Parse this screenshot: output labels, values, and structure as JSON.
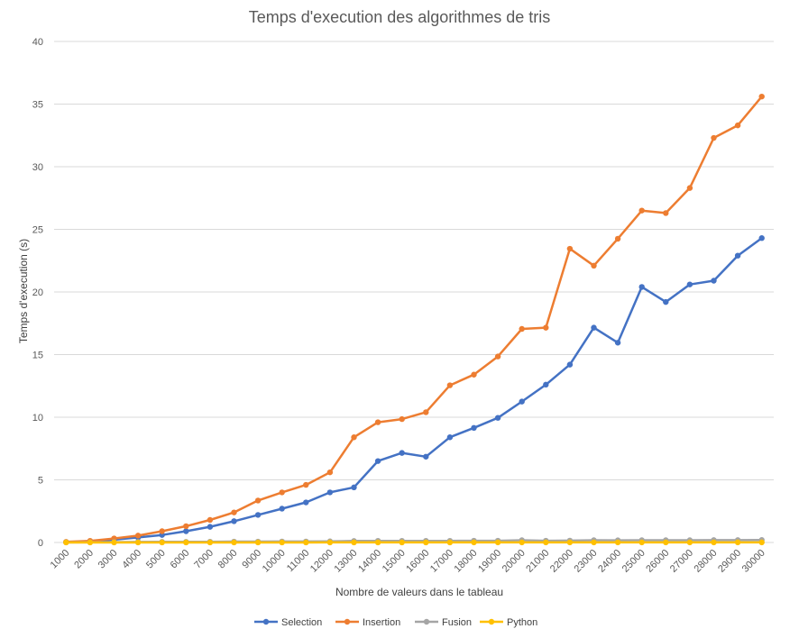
{
  "chart_data": {
    "type": "line",
    "title": "Temps d'execution des algorithmes de tris",
    "xlabel": "Nombre de valeurs dans le tableau",
    "ylabel": "Temps d'execution (s)",
    "ylim": [
      0,
      40
    ],
    "yticks": [
      "0",
      "5",
      "10",
      "15",
      "20",
      "25",
      "30",
      "35",
      "40"
    ],
    "grid": true,
    "legend_position": "bottom",
    "categories": [
      "1000",
      "2000",
      "3000",
      "4000",
      "5000",
      "6000",
      "7000",
      "8000",
      "9000",
      "10000",
      "11000",
      "12000",
      "13000",
      "14000",
      "15000",
      "16000",
      "17000",
      "18000",
      "19000",
      "20000",
      "21000",
      "22000",
      "23000",
      "24000",
      "25000",
      "26000",
      "27000",
      "28000",
      "29000",
      "30000"
    ],
    "series": [
      {
        "name": "Selection",
        "color": "#4472C4",
        "values": [
          0.03,
          0.1,
          0.22,
          0.4,
          0.6,
          0.9,
          1.25,
          1.7,
          2.2,
          2.7,
          3.2,
          4.0,
          4.4,
          6.5,
          7.15,
          6.85,
          8.4,
          9.15,
          9.95,
          11.25,
          12.6,
          14.2,
          17.15,
          15.95,
          20.4,
          19.2,
          20.6,
          20.9,
          22.9,
          24.3
        ]
      },
      {
        "name": "Insertion",
        "color": "#ED7D31",
        "values": [
          0.05,
          0.13,
          0.32,
          0.55,
          0.9,
          1.3,
          1.8,
          2.4,
          3.35,
          4.0,
          4.6,
          5.6,
          8.4,
          9.6,
          9.85,
          10.4,
          12.55,
          13.4,
          14.85,
          17.05,
          17.15,
          23.45,
          22.1,
          24.25,
          26.5,
          26.3,
          28.3,
          32.3,
          33.3,
          35.6
        ]
      },
      {
        "name": "Fusion",
        "color": "#A5A5A5",
        "values": [
          0.01,
          0.02,
          0.03,
          0.04,
          0.05,
          0.05,
          0.06,
          0.07,
          0.07,
          0.08,
          0.08,
          0.09,
          0.12,
          0.13,
          0.13,
          0.13,
          0.13,
          0.14,
          0.14,
          0.18,
          0.14,
          0.15,
          0.18,
          0.17,
          0.18,
          0.18,
          0.18,
          0.19,
          0.19,
          0.2
        ]
      },
      {
        "name": "Python",
        "color": "#FFC000",
        "values": [
          0.001,
          0.001,
          0.001,
          0.002,
          0.002,
          0.002,
          0.002,
          0.003,
          0.003,
          0.003,
          0.003,
          0.004,
          0.004,
          0.004,
          0.005,
          0.005,
          0.005,
          0.006,
          0.006,
          0.006,
          0.006,
          0.007,
          0.007,
          0.007,
          0.008,
          0.008,
          0.008,
          0.008,
          0.009,
          0.009
        ]
      }
    ]
  }
}
